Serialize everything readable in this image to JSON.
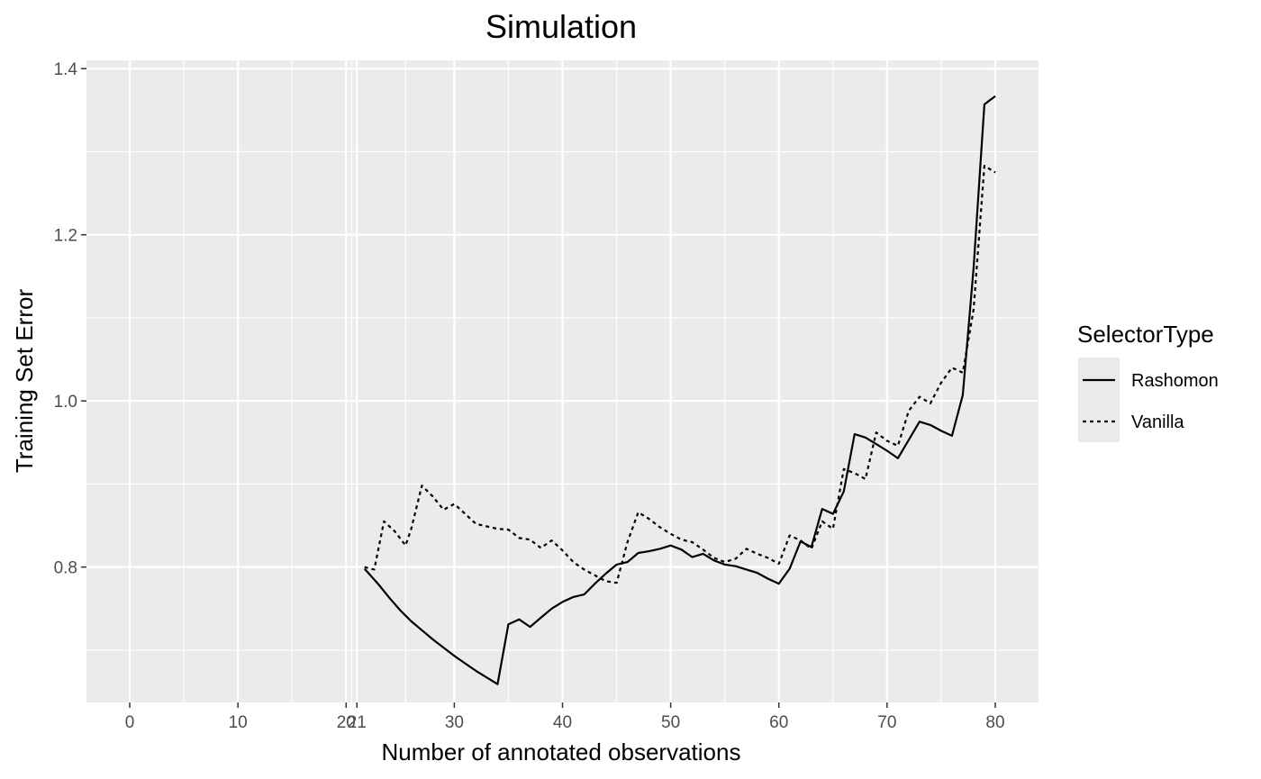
{
  "chart_data": {
    "type": "line",
    "title": "Simulation",
    "xlabel": "Number of annotated observations",
    "ylabel": "Training Set Error",
    "xlim": [
      -4,
      84
    ],
    "ylim": [
      0.637,
      1.41
    ],
    "x_ticks": [
      0,
      10,
      20,
      21,
      30,
      40,
      50,
      60,
      70,
      80
    ],
    "x_tick_labels": [
      "0",
      "10",
      "20",
      "21",
      "30",
      "40",
      "50",
      "60",
      "70",
      "80"
    ],
    "y_ticks": [
      0.8,
      1.0,
      1.2,
      1.4
    ],
    "y_tick_labels": [
      "0.8",
      "1.0",
      "1.2",
      "1.4"
    ],
    "grid": true,
    "legend": {
      "title": "SelectorType",
      "position": "right",
      "entries": [
        {
          "label": "Rashomon",
          "linetype": "solid"
        },
        {
          "label": "Vanilla",
          "linetype": "dotted"
        }
      ]
    },
    "series": [
      {
        "name": "Rashomon",
        "linetype": "solid",
        "color": "#000000",
        "x": [
          21.7,
          23,
          24,
          25,
          26,
          27,
          28,
          29,
          30,
          31,
          32,
          33,
          34,
          35,
          36,
          37,
          38,
          39,
          40,
          41,
          42,
          43,
          44,
          45,
          46,
          47,
          48,
          49,
          50,
          51,
          52,
          53,
          54,
          55,
          56,
          57,
          58,
          59,
          60,
          61,
          62,
          63,
          64,
          65,
          66,
          67,
          68,
          69,
          70,
          71,
          72,
          73,
          74,
          75,
          76,
          77,
          78,
          79,
          80
        ],
        "y": [
          0.798,
          0.779,
          0.763,
          0.748,
          0.735,
          0.724,
          0.713,
          0.703,
          0.693,
          0.684,
          0.675,
          0.667,
          0.659,
          0.731,
          0.737,
          0.728,
          0.739,
          0.75,
          0.758,
          0.764,
          0.767,
          0.78,
          0.792,
          0.803,
          0.806,
          0.817,
          0.819,
          0.822,
          0.826,
          0.821,
          0.812,
          0.816,
          0.808,
          0.803,
          0.801,
          0.797,
          0.793,
          0.786,
          0.78,
          0.798,
          0.831,
          0.824,
          0.87,
          0.864,
          0.891,
          0.96,
          0.956,
          0.948,
          0.94,
          0.931,
          0.953,
          0.975,
          0.971,
          0.964,
          0.958,
          1.007,
          1.16,
          1.357,
          1.367
        ]
      },
      {
        "name": "Vanilla",
        "linetype": "dotted",
        "color": "#000000",
        "x": [
          21.7,
          22.6,
          23.5,
          24.5,
          25.5,
          26,
          27,
          28,
          29,
          30,
          31,
          32,
          33,
          34,
          35,
          36,
          37,
          38,
          39,
          40,
          41,
          42,
          43,
          44,
          45,
          46,
          47,
          48,
          49,
          50,
          51,
          52,
          53,
          54,
          55,
          56,
          57,
          58,
          59,
          60,
          61,
          62,
          63,
          64,
          65,
          66,
          67,
          68,
          69,
          70,
          71,
          72,
          73,
          74,
          75,
          76,
          77,
          78,
          79,
          80
        ],
        "y": [
          0.8,
          0.797,
          0.855,
          0.843,
          0.826,
          0.845,
          0.898,
          0.885,
          0.869,
          0.876,
          0.864,
          0.852,
          0.849,
          0.846,
          0.845,
          0.835,
          0.833,
          0.823,
          0.832,
          0.82,
          0.806,
          0.797,
          0.79,
          0.783,
          0.781,
          0.83,
          0.866,
          0.858,
          0.848,
          0.84,
          0.833,
          0.83,
          0.821,
          0.811,
          0.806,
          0.81,
          0.822,
          0.816,
          0.811,
          0.804,
          0.838,
          0.832,
          0.822,
          0.855,
          0.846,
          0.918,
          0.913,
          0.906,
          0.962,
          0.952,
          0.946,
          0.988,
          1.005,
          0.997,
          1.022,
          1.04,
          1.034,
          1.11,
          1.283,
          1.275
        ]
      }
    ]
  }
}
